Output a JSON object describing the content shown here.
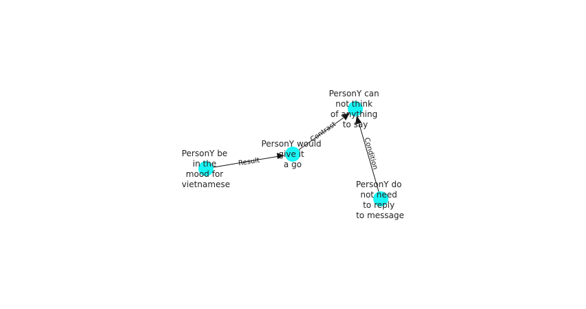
{
  "colors": {
    "node_fill": "#19f5f5",
    "edge": "#111111",
    "text": "#222222"
  },
  "nodes": [
    {
      "id": "mood",
      "label_lines": [
        "PersonY be",
        "in the",
        "mood for",
        "vietnamese"
      ]
    },
    {
      "id": "give",
      "label_lines": [
        "PersonY would",
        "give it",
        "a go"
      ]
    },
    {
      "id": "think",
      "label_lines": [
        "PersonY can",
        "not think",
        "of anything",
        "to say"
      ]
    },
    {
      "id": "reply",
      "label_lines": [
        "PersonY do",
        "not need",
        "to reply",
        "to message"
      ]
    }
  ],
  "edges": [
    {
      "from": "mood",
      "to": "give",
      "label": "Result"
    },
    {
      "from": "give",
      "to": "think",
      "label": "Contrast"
    },
    {
      "from": "reply",
      "to": "think",
      "label": "Condition"
    }
  ]
}
